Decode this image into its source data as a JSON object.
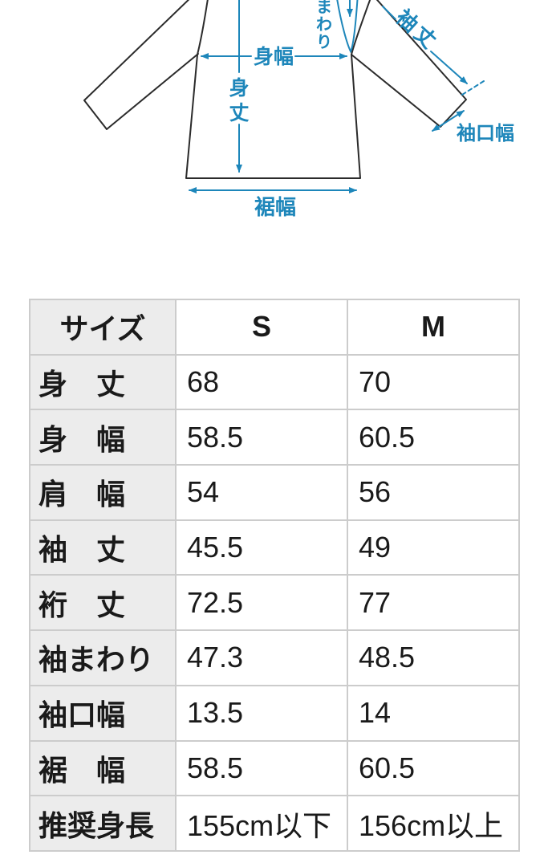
{
  "diagram": {
    "accent_color": "#1d86ba",
    "line_color": "#2b2b2b",
    "labels": {
      "body_width": "身幅",
      "body_length_char1": "身",
      "body_length_char2": "丈",
      "hem_width": "裾幅",
      "sleeve_around_char1": "ま",
      "sleeve_around_char2": "わ",
      "sleeve_around_char3": "り",
      "sleeve_length": "袖丈",
      "cuff_width": "袖口幅"
    }
  },
  "table": {
    "border_color": "#cccccc",
    "label_bg": "#ececec",
    "columns": [
      "サイズ",
      "S",
      "M"
    ],
    "rows": [
      {
        "label": "身　丈",
        "s": "68",
        "m": "70"
      },
      {
        "label": "身　幅",
        "s": "58.5",
        "m": "60.5"
      },
      {
        "label": "肩　幅",
        "s": "54",
        "m": "56"
      },
      {
        "label": "袖　丈",
        "s": "45.5",
        "m": "49"
      },
      {
        "label": "裄　丈",
        "s": "72.5",
        "m": "77"
      },
      {
        "label": "袖まわり",
        "s": "47.3",
        "m": "48.5"
      },
      {
        "label": "袖口幅",
        "s": "13.5",
        "m": "14"
      },
      {
        "label": "裾　幅",
        "s": "58.5",
        "m": "60.5"
      },
      {
        "label": "推奨身長",
        "s": "155cm以下",
        "m": "156cm以上"
      }
    ]
  }
}
